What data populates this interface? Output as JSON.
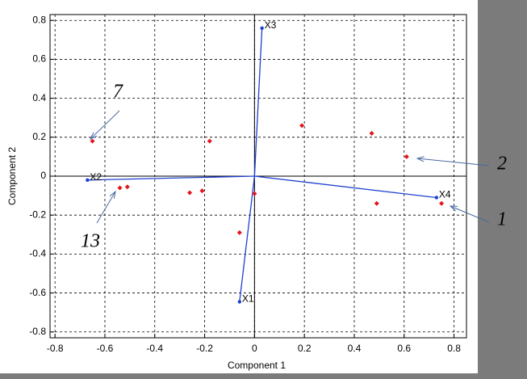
{
  "chart_data": {
    "type": "biplot",
    "xlabel": "Component 1",
    "ylabel": "Component 2",
    "xlim": [
      -0.82,
      0.85
    ],
    "ylim": [
      -0.83,
      0.83
    ],
    "xticks": [
      -0.8,
      -0.6,
      -0.4,
      -0.2,
      0,
      0.2,
      0.4,
      0.6,
      0.8
    ],
    "yticks": [
      -0.8,
      -0.6,
      -0.4,
      -0.2,
      0,
      0.2,
      0.4,
      0.6,
      0.8
    ],
    "grid": true,
    "points": {
      "color": "#e3141c",
      "x": [
        -0.65,
        -0.18,
        0.19,
        0.47,
        0.61,
        -0.54,
        -0.51,
        -0.26,
        -0.21,
        0.0,
        -0.06,
        0.49,
        0.75
      ],
      "y": [
        0.18,
        0.18,
        0.26,
        0.22,
        0.1,
        -0.06,
        -0.055,
        -0.085,
        -0.075,
        -0.09,
        -0.29,
        -0.14,
        -0.14
      ]
    },
    "vectors": {
      "color": "#1f3fd0",
      "names": [
        "X1",
        "X2",
        "X3",
        "X4"
      ],
      "x": [
        -0.06,
        -0.67,
        0.03,
        0.73
      ],
      "y": [
        -0.645,
        -0.02,
        0.76,
        -0.11
      ]
    },
    "annotations": [
      "7",
      "2",
      "1",
      "13"
    ]
  }
}
